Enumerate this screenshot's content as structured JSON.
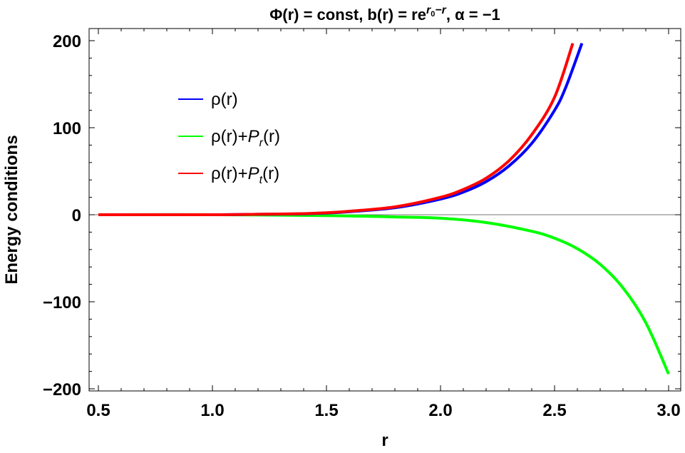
{
  "chart_data": {
    "type": "line",
    "title": "Φ(r) = const, b(r) = re^(r0−r), α = −1",
    "title_parts": {
      "left": "Φ(r) = const, b(r) = re",
      "sup_r": "r",
      "sup_sub": "0",
      "sup_rest": "−r",
      "right": ", α = −1",
      "alpha": "α"
    },
    "xlabel": "r",
    "ylabel": "Energy conditions",
    "xlim": [
      0.5,
      3.0
    ],
    "ylim": [
      -200,
      200
    ],
    "x_ticks": [
      0.5,
      1.0,
      1.5,
      2.0,
      2.5,
      3.0
    ],
    "x_tick_labels": [
      "0.5",
      "1.0",
      "1.5",
      "2.0",
      "2.5",
      "3.0"
    ],
    "y_ticks": [
      -200,
      -100,
      0,
      100,
      200
    ],
    "y_tick_labels": [
      "−200",
      "−100",
      "0",
      "100",
      "200"
    ],
    "grid": false,
    "legend_position": "top-left",
    "series": [
      {
        "name": "ρ(r)",
        "legend": {
          "base": "ρ(r)",
          "extra": "",
          "sub": "",
          "tail": ""
        },
        "color": "#0000ff",
        "x": [
          0.5,
          1.0,
          1.2,
          1.4,
          1.5,
          1.6,
          1.8,
          2.0,
          2.1,
          2.2,
          2.3,
          2.4,
          2.5,
          2.55,
          2.62
        ],
        "y": [
          0,
          0,
          0.5,
          1,
          2,
          3.5,
          8,
          18,
          26,
          38,
          56,
          82,
          120,
          147,
          197
        ]
      },
      {
        "name": "ρ(r)+Pr(r)",
        "legend": {
          "base": "ρ(r)+",
          "extra": "P",
          "sub": "r",
          "tail": "(r)"
        },
        "color": "#00ff00",
        "x": [
          0.5,
          1.0,
          1.5,
          1.8,
          2.0,
          2.2,
          2.4,
          2.5,
          2.6,
          2.7,
          2.8,
          2.9,
          3.0
        ],
        "y": [
          0,
          0,
          -1,
          -2.5,
          -4,
          -9,
          -19,
          -27,
          -39,
          -57,
          -84,
          -124,
          -183
        ]
      },
      {
        "name": "ρ(r)+Pt(r)",
        "legend": {
          "base": "ρ(r)+",
          "extra": "P",
          "sub": "t",
          "tail": "(r)"
        },
        "color": "#ff0000",
        "x": [
          0.5,
          1.0,
          1.2,
          1.4,
          1.5,
          1.6,
          1.8,
          2.0,
          2.1,
          2.2,
          2.3,
          2.4,
          2.5,
          2.58
        ],
        "y": [
          0,
          0,
          0.5,
          1.2,
          2.3,
          4,
          9,
          20,
          29,
          42,
          62,
          92,
          135,
          197
        ]
      }
    ]
  }
}
